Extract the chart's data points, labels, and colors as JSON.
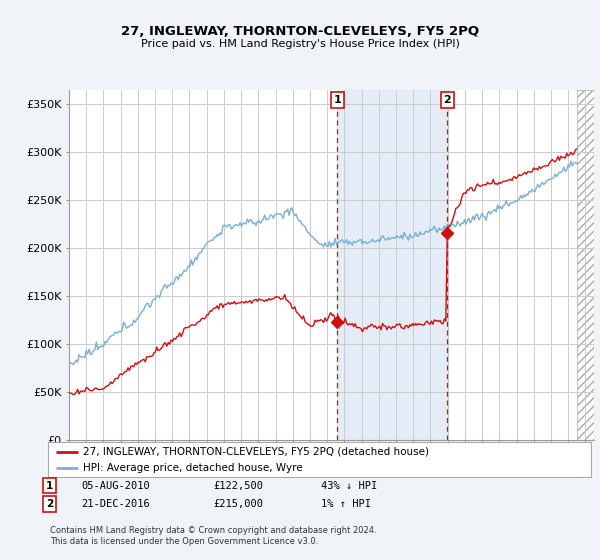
{
  "title": "27, INGLEWAY, THORNTON-CLEVELEYS, FY5 2PQ",
  "subtitle": "Price paid vs. HM Land Registry's House Price Index (HPI)",
  "ylabel_ticks": [
    "£0",
    "£50K",
    "£100K",
    "£150K",
    "£200K",
    "£250K",
    "£300K",
    "£350K"
  ],
  "ytick_values": [
    0,
    50000,
    100000,
    150000,
    200000,
    250000,
    300000,
    350000
  ],
  "ylim": [
    0,
    365000
  ],
  "xlim_start": 1995.0,
  "xlim_end": 2025.5,
  "hatch_start": 2024.5,
  "sale1": {
    "date": 2010.58,
    "price": 122500,
    "label": "1"
  },
  "sale2": {
    "date": 2016.97,
    "price": 215000,
    "label": "2"
  },
  "legend_line1": "27, INGLEWAY, THORNTON-CLEVELEYS, FY5 2PQ (detached house)",
  "legend_line2": "HPI: Average price, detached house, Wyre",
  "footnote": "Contains HM Land Registry data © Crown copyright and database right 2024.\nThis data is licensed under the Open Government Licence v3.0.",
  "background_color": "#f0f4f8",
  "plot_bg_color": "#ffffff",
  "hpi_color": "#7bafd4",
  "price_color": "#cc1111",
  "vline_color": "#cc1111",
  "grid_color": "#cccccc",
  "shade_color": "#dce8f5"
}
